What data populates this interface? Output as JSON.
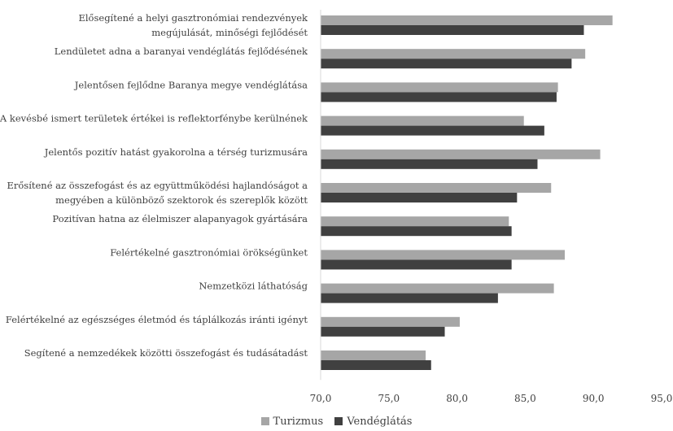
{
  "chart_data": {
    "type": "bar",
    "orientation": "horizontal",
    "categories": [
      [
        "Elősegítené a helyi gasztronómiai rendezvények",
        "megújulását, minőségi fejlődését"
      ],
      [
        "Lendületet adna a baranyai vendéglátás fejlődésének"
      ],
      [
        "Jelentősen fejlődne Baranya megye vendéglátása"
      ],
      [
        "A kevésbé ismert területek értékei is reflektorfénybe kerülnének"
      ],
      [
        "Jelentős pozitív hatást gyakorolna a térség turizmusára"
      ],
      [
        "Erősítené az összefogást és az együttműködési hajlandóságot a",
        "megyében a különböző szektorok és szereplők között"
      ],
      [
        "Pozitívan hatna az élelmiszer alapanyagok gyártására"
      ],
      [
        "Felértékelné gasztronómiai örökségünket"
      ],
      [
        "Nemzetközi láthatóság"
      ],
      [
        "Felértékelné az egészséges életmód és táplálkozás iránti igényt"
      ],
      [
        "Segítené a nemzedékek közötti összefogást és tudásátadást"
      ]
    ],
    "series": [
      {
        "name": "Turizmus",
        "color": "#a6a6a6",
        "values": [
          91.4,
          89.4,
          87.4,
          84.9,
          90.5,
          86.9,
          83.8,
          87.9,
          87.1,
          80.2,
          77.7
        ]
      },
      {
        "name": "Vendéglátás",
        "color": "#404040",
        "values": [
          89.3,
          88.4,
          87.3,
          86.4,
          85.9,
          84.4,
          84.0,
          84.0,
          83.0,
          79.1,
          78.1
        ]
      }
    ],
    "xlim": [
      70,
      95
    ],
    "xticks": [
      "70,0",
      "75,0",
      "80,0",
      "85,0",
      "90,0",
      "95,0"
    ],
    "xtick_values": [
      70,
      75,
      80,
      85,
      90,
      95
    ],
    "grid": false,
    "legend_position": "bottom"
  }
}
